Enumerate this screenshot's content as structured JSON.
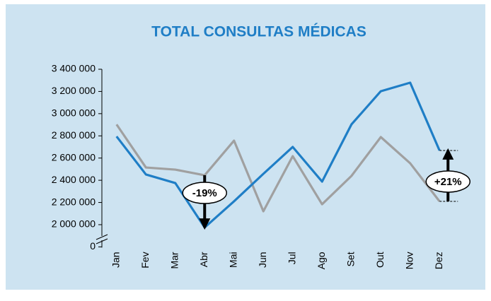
{
  "chart_data": {
    "type": "line",
    "title": "TOTAL CONSULTAS MÉDICAS",
    "categories": [
      "Jan",
      "Fev",
      "Mar",
      "Abr",
      "Mai",
      "Jun",
      "Jul",
      "Ago",
      "Set",
      "Out",
      "Nov",
      "Dez"
    ],
    "series": [
      {
        "color": "#1f7ec6",
        "values": [
          2795000,
          2452000,
          2375000,
          1975000,
          2210000,
          2458000,
          2700000,
          2388000,
          2903000,
          3202000,
          3279000,
          2668000
        ]
      },
      {
        "color": "#a0a0a0",
        "values": [
          2903000,
          2515000,
          2496000,
          2445000,
          2757000,
          2121000,
          2617000,
          2184000,
          2439000,
          2789000,
          2553000,
          2210000
        ]
      }
    ],
    "ylim": [
      1800000,
      3400000
    ],
    "axis_break": true,
    "yticks": [
      0,
      {
        "value": 2000000,
        "label": "2 000 000"
      },
      {
        "value": 2200000,
        "label": "2 200 000"
      },
      {
        "value": 2400000,
        "label": "2 400 000"
      },
      {
        "value": 2600000,
        "label": "2 600 000"
      },
      {
        "value": 2800000,
        "label": "2 800 000"
      },
      {
        "value": 3000000,
        "label": "3 000 000"
      },
      {
        "value": 3200000,
        "label": "3 200 000"
      },
      {
        "value": 3400000,
        "label": "3 400 000"
      }
    ],
    "annotations": [
      {
        "label": "-19%",
        "x": "Abr"
      },
      {
        "label": "+21%",
        "x": "Dez"
      }
    ]
  }
}
